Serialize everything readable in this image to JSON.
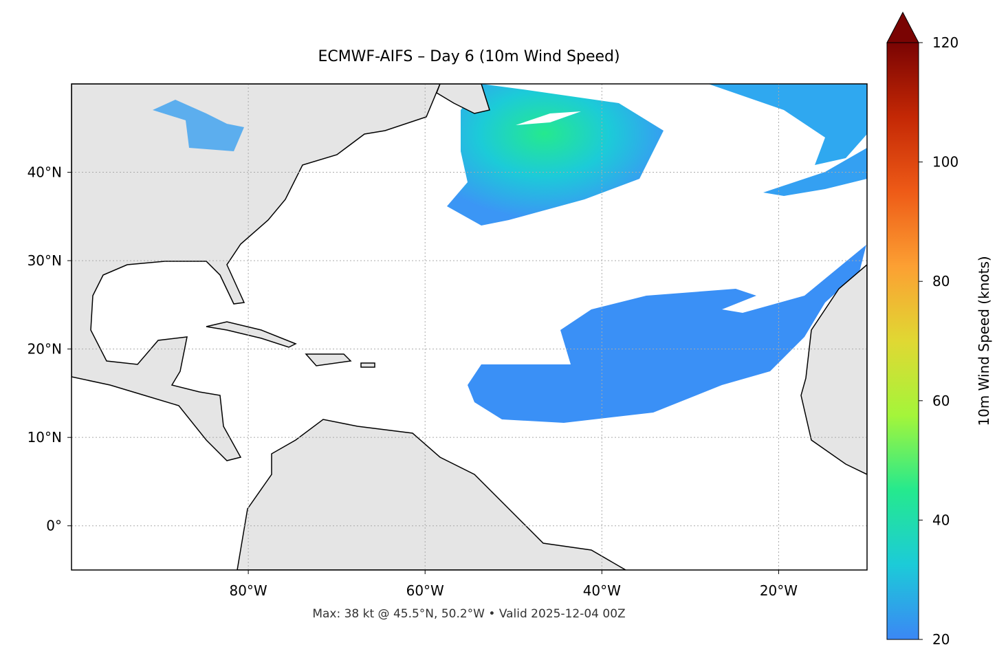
{
  "chart_data": {
    "type": "map",
    "title": "ECMWF-AIFS – Day 6 (10m Wind Speed)",
    "note": "Max: 38 kt @ 45.5°N, 50.2°W • Valid 2025-12-04 00Z",
    "xlim": [
      -100,
      -10
    ],
    "ylim": [
      -5,
      50
    ],
    "xticks": [
      {
        "value": -80,
        "label": "80°W"
      },
      {
        "value": -60,
        "label": "60°W"
      },
      {
        "value": -40,
        "label": "40°W"
      },
      {
        "value": -20,
        "label": "20°W"
      }
    ],
    "yticks": [
      {
        "value": 0,
        "label": "0°"
      },
      {
        "value": 10,
        "label": "10°N"
      },
      {
        "value": 20,
        "label": "20°N"
      },
      {
        "value": 30,
        "label": "30°N"
      },
      {
        "value": 40,
        "label": "40°N"
      }
    ],
    "grid": true,
    "colorbar": {
      "label": "10m Wind Speed (knots)",
      "lim": [
        20,
        120
      ],
      "ticks": [
        20,
        40,
        60,
        80,
        100,
        120
      ],
      "colors": [
        "#3b87f5",
        "#1ccbd8",
        "#25e98e",
        "#a4f53a",
        "#e0d833",
        "#fca033",
        "#ee5b17",
        "#c42805",
        "#7a0403"
      ]
    }
  }
}
